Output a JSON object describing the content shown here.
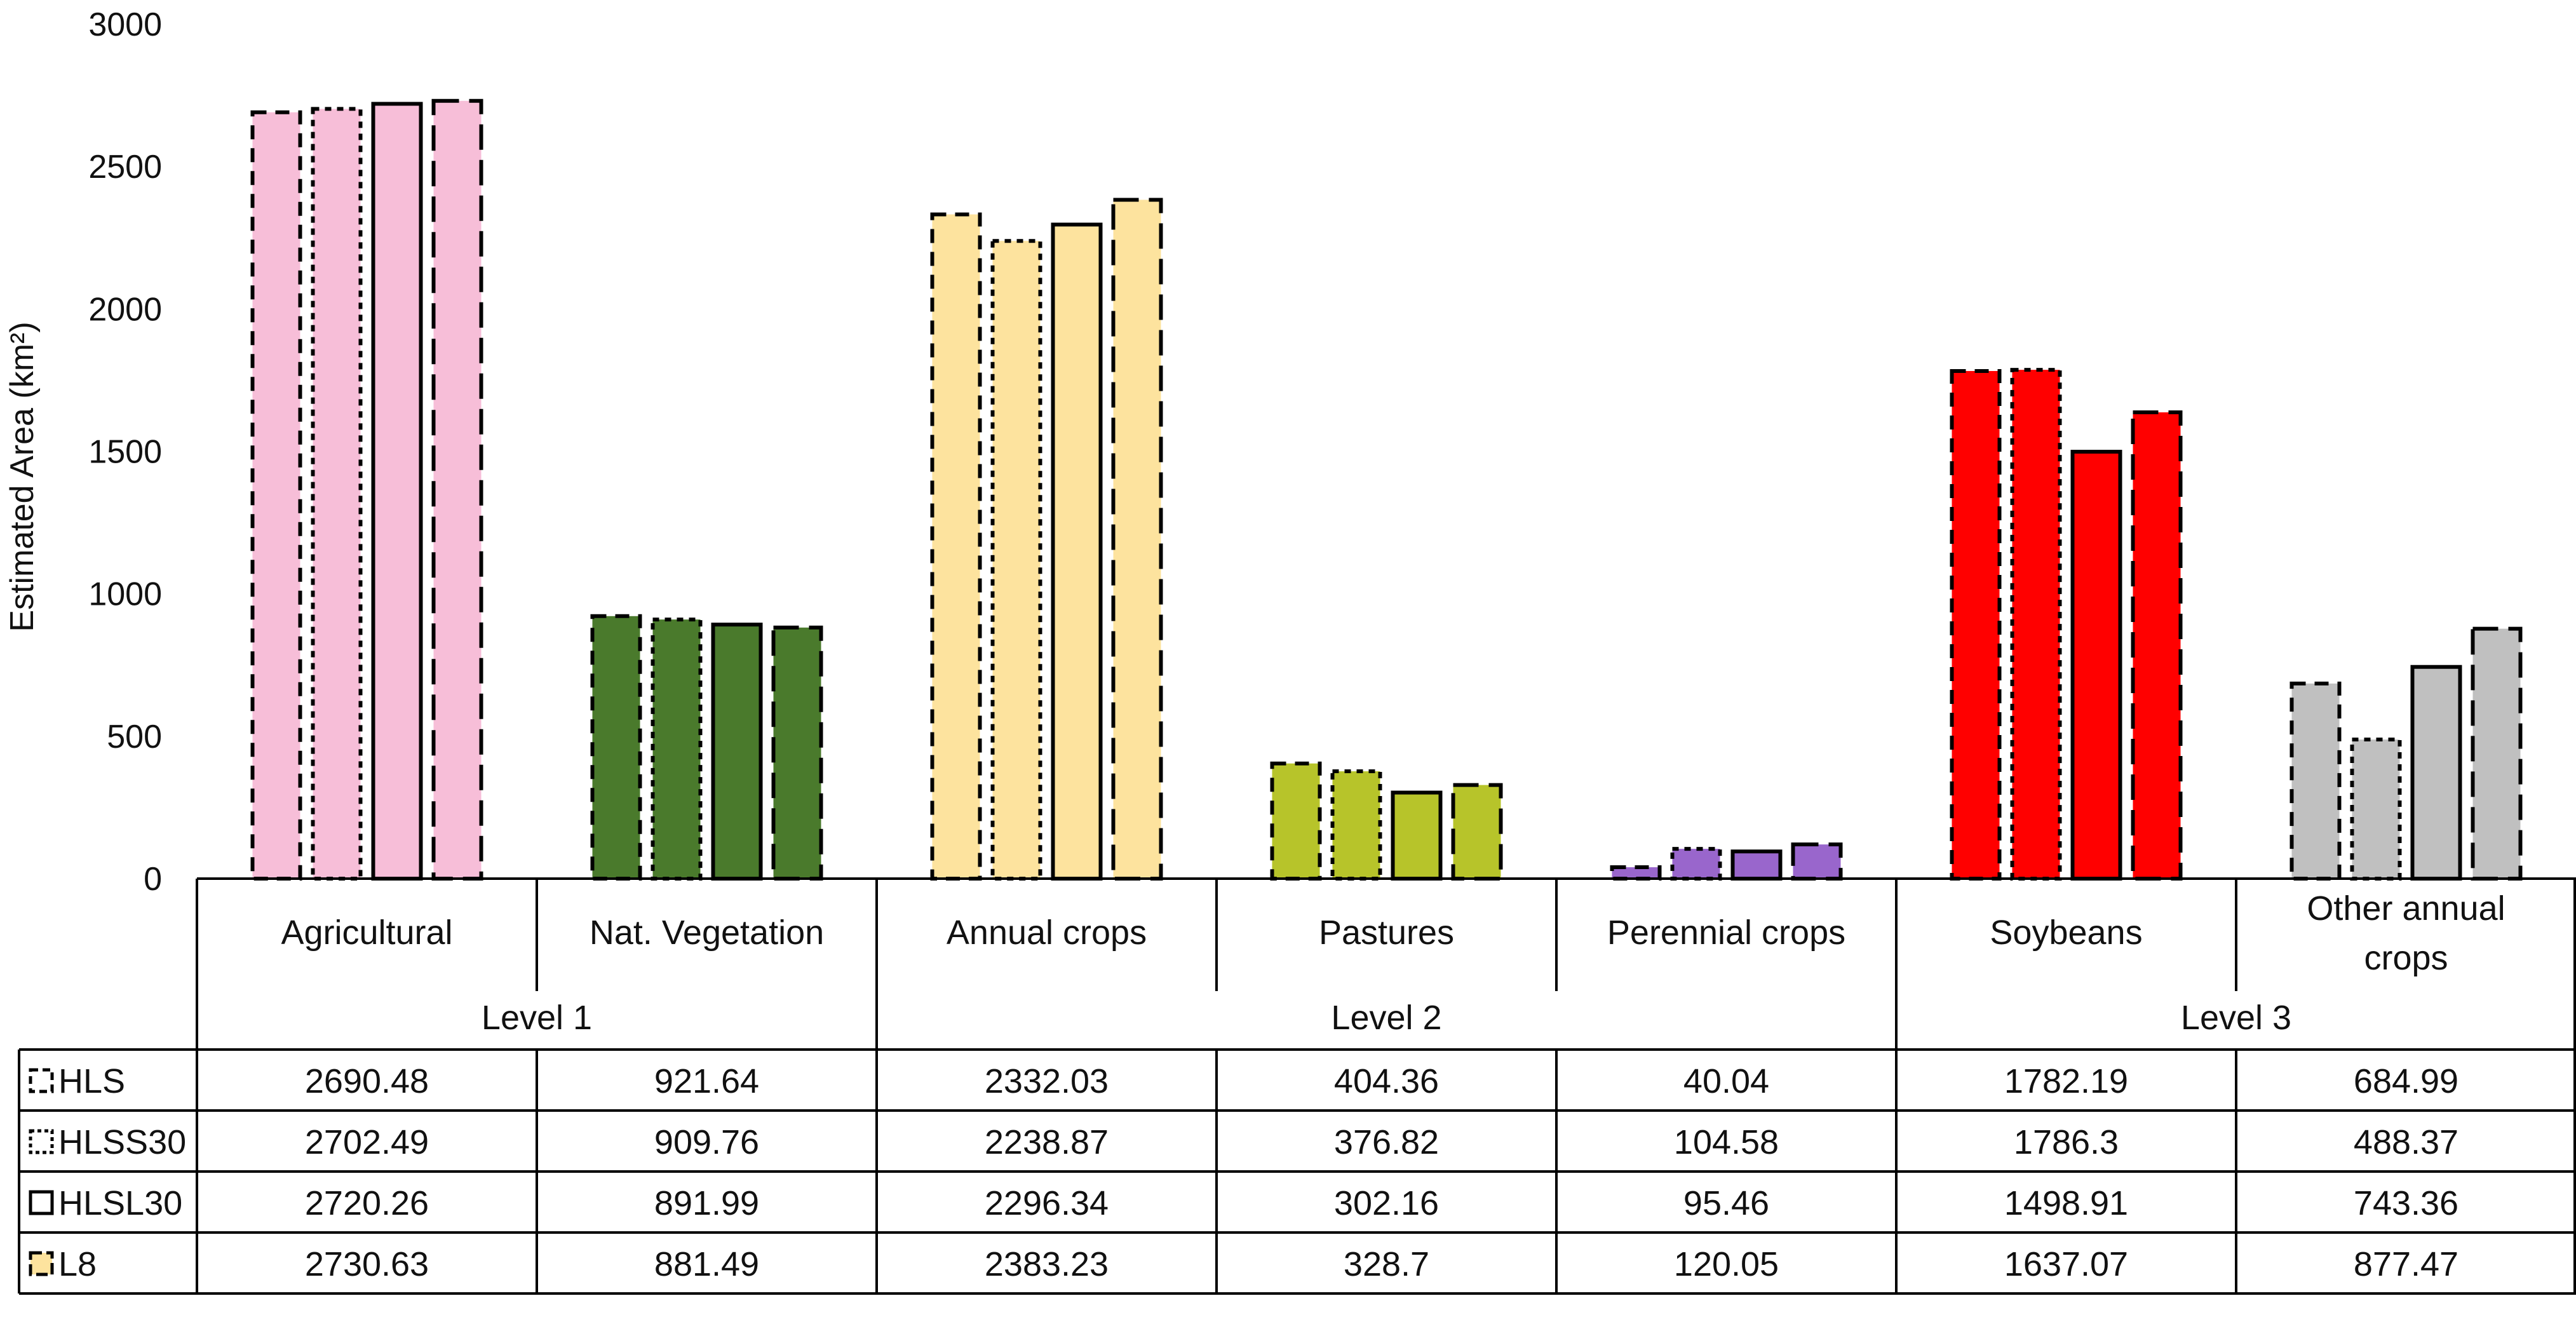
{
  "chart_data": {
    "type": "bar",
    "ylabel": "Estimated Area (km²)",
    "ylim": [
      0,
      3000
    ],
    "yticks": [
      0,
      500,
      1000,
      1500,
      2000,
      2500,
      3000
    ],
    "categories": [
      "Agricultural",
      "Nat. Vegetation",
      "Annual crops",
      "Pastures",
      "Perennial crops",
      "Soybeans",
      "Other annual crops"
    ],
    "category_lines": [
      [
        "Agricultural"
      ],
      [
        "Nat. Vegetation"
      ],
      [
        "Annual crops"
      ],
      [
        "Pastures"
      ],
      [
        "Perennial crops"
      ],
      [
        "Soybeans"
      ],
      [
        "Other annual",
        "crops"
      ]
    ],
    "category_colors": [
      "#f7bed8",
      "#4a7a2c",
      "#fde39e",
      "#b7c42a",
      "#9966cc",
      "#ff0000",
      "#c0c0c0"
    ],
    "levels": [
      {
        "label": "Level 1",
        "start": 0,
        "end": 1
      },
      {
        "label": "Level 2",
        "start": 2,
        "end": 4
      },
      {
        "label": "Level 3",
        "start": 5,
        "end": 6
      }
    ],
    "series": [
      {
        "name": "HLS",
        "dash": "dash",
        "values": [
          2690.48,
          921.64,
          2332.03,
          404.36,
          40.04,
          1782.19,
          684.99
        ]
      },
      {
        "name": "HLSS30",
        "dash": "dot",
        "values": [
          2702.49,
          909.76,
          2238.87,
          376.82,
          104.58,
          1786.3,
          488.37
        ]
      },
      {
        "name": "HLSL30",
        "dash": "solid",
        "values": [
          2720.26,
          891.99,
          2296.34,
          302.16,
          95.46,
          1498.91,
          743.36
        ]
      },
      {
        "name": "L8",
        "dash": "longdash",
        "values": [
          2730.63,
          881.49,
          2383.23,
          328.7,
          120.05,
          1637.07,
          877.47
        ]
      }
    ],
    "table_values": [
      [
        "2690.48",
        "921.64",
        "2332.03",
        "404.36",
        "40.04",
        "1782.19",
        "684.99"
      ],
      [
        "2702.49",
        "909.76",
        "2238.87",
        "376.82",
        "104.58",
        "1786.3",
        "488.37"
      ],
      [
        "2720.26",
        "891.99",
        "2296.34",
        "302.16",
        "95.46",
        "1498.91",
        "743.36"
      ],
      [
        "2730.63",
        "881.49",
        "2383.23",
        "328.7",
        "120.05",
        "1637.07",
        "877.47"
      ]
    ]
  }
}
